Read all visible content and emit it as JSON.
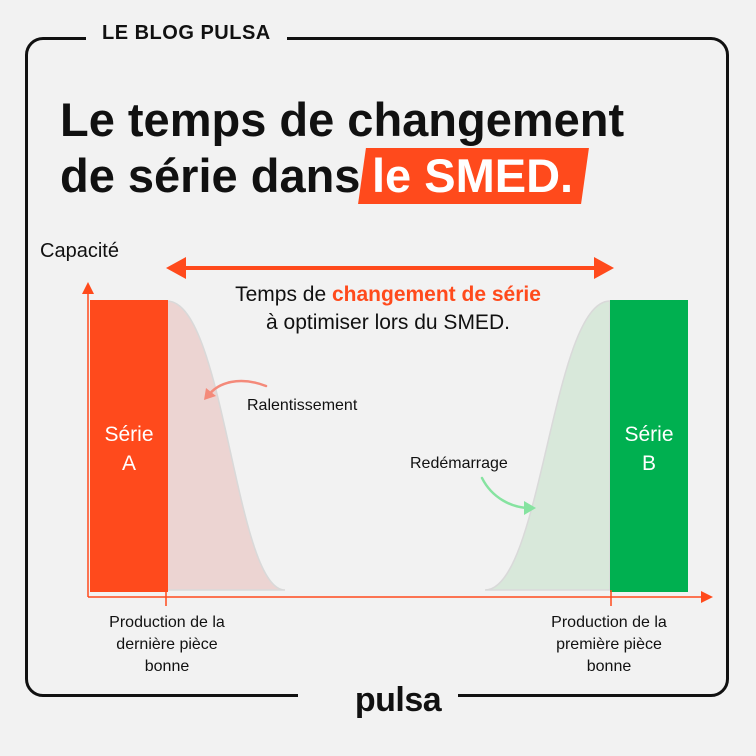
{
  "blog_tag": "LE BLOG PULSA",
  "title": {
    "line1": "Le temps de changement",
    "line2_start": "de série dans",
    "highlight": "le SMED."
  },
  "axis": {
    "y_label": "Capacité"
  },
  "center_text": {
    "prefix": "Temps de ",
    "highlight": "changement de série",
    "suffix": " à optimiser lors du SMED."
  },
  "series_a": {
    "line1": "Série",
    "line2": "A"
  },
  "series_b": {
    "line1": "Série",
    "line2": "B"
  },
  "annotations": {
    "slowdown": "Ralentissement",
    "restart": "Redémarrage"
  },
  "bottom_labels": {
    "left": {
      "line1": "Production de la",
      "line2": "dernière pièce",
      "line3": "bonne"
    },
    "right": {
      "line1": "Production de la",
      "line2": "première pièce",
      "line3": "bonne"
    }
  },
  "logo": {
    "text": "pulsa"
  },
  "colors": {
    "accent": "#ff4a1c",
    "green": "#00b050",
    "slowdown_fill": "#ecd4d2",
    "restart_fill": "#d8e8da"
  }
}
